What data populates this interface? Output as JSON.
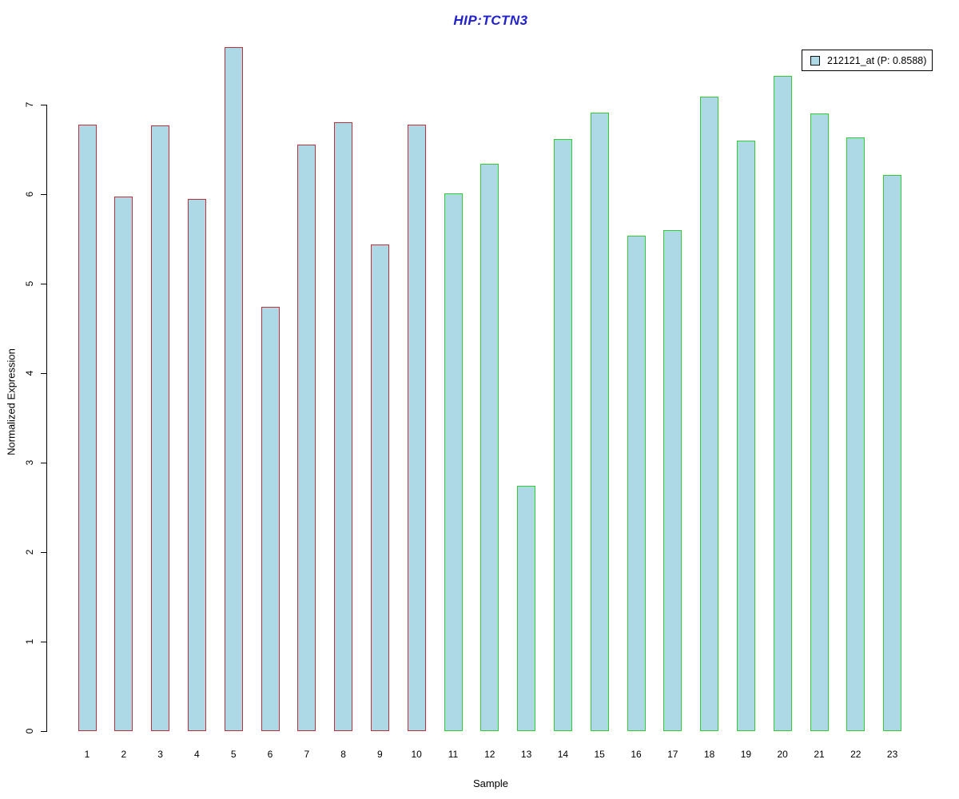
{
  "chart_data": {
    "type": "bar",
    "title": "HIP:TCTN3",
    "xlabel": "Sample",
    "ylabel": "Normalized Expression",
    "ylim": [
      0,
      7.7
    ],
    "yticks": [
      0,
      1,
      2,
      3,
      4,
      5,
      6,
      7
    ],
    "grid": false,
    "legend_position": "top-right",
    "categories": [
      "1",
      "2",
      "3",
      "4",
      "5",
      "6",
      "7",
      "8",
      "9",
      "10",
      "11",
      "12",
      "13",
      "14",
      "15",
      "16",
      "17",
      "18",
      "19",
      "20",
      "21",
      "22",
      "23"
    ],
    "series": [
      {
        "name": "212121_at (P: 0.8588)",
        "values": [
          6.78,
          5.97,
          6.77,
          5.95,
          7.64,
          4.74,
          6.55,
          6.8,
          5.44,
          6.78,
          6.01,
          6.34,
          2.74,
          6.62,
          6.91,
          5.54,
          5.6,
          7.09,
          6.6,
          7.32,
          6.9,
          6.63,
          6.21
        ],
        "fill": "#ADD8E6"
      }
    ],
    "bar_border_groups": [
      {
        "name": "samples-1-10",
        "from": 1,
        "to": 10,
        "border_color": "#C0303C"
      },
      {
        "name": "samples-11-23",
        "from": 11,
        "to": 23,
        "border_color": "#33CC33"
      }
    ]
  },
  "legend": {
    "label": "212121_at (P: 0.8588)"
  },
  "colors": {
    "background": "#FFFFFF",
    "title": "#2222CC",
    "bar_fill": "#ADD8E6",
    "group1_border": "#C0303C",
    "group2_border": "#33CC33",
    "axis": "#000000"
  }
}
